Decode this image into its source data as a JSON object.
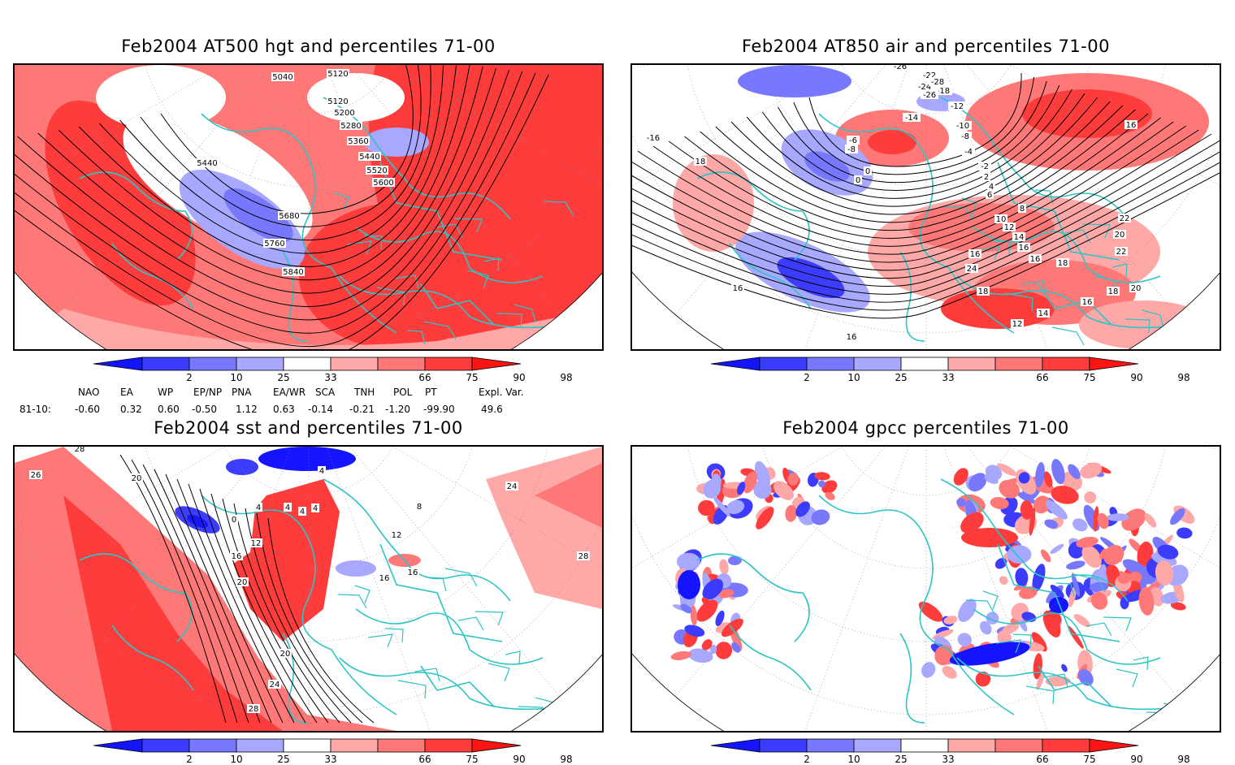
{
  "panels": [
    {
      "title": "Feb2004 AT500 hgt and percentiles 71-00",
      "contour_labels": [
        "5040",
        "5120",
        "5120",
        "5200",
        "5280",
        "5360",
        "5440",
        "5440",
        "5520",
        "5600",
        "5680",
        "5760",
        "5840"
      ]
    },
    {
      "title": "Feb2004 AT850 air and percentiles 71-00",
      "contour_labels": [
        "-26",
        "-22",
        "-24",
        "-28",
        "-18",
        "-26",
        "-12",
        "-14",
        "-10",
        "-8",
        "-6",
        "-8",
        "-4",
        "-2",
        "0",
        "2",
        "0",
        "4",
        "6",
        "8",
        "10",
        "12",
        "14",
        "16",
        "16",
        "18",
        "20",
        "22",
        "24",
        "22",
        "20",
        "18",
        "16",
        "14",
        "12",
        "16",
        "18",
        "16",
        "16",
        "-16",
        "16",
        "18"
      ]
    },
    {
      "title": "Feb2004 sst and percentiles 71-00",
      "contour_labels": [
        "28",
        "26",
        "20",
        "0",
        "4",
        "4",
        "4",
        "4",
        "20",
        "12",
        "16",
        "20",
        "24",
        "28",
        "24",
        "28",
        "16",
        "16",
        "12",
        "8",
        "4"
      ]
    },
    {
      "title": "Feb2004 gpcc percentiles 71-00",
      "contour_labels": []
    }
  ],
  "colorbar": {
    "labels": [
      "2",
      "10",
      "25",
      "33",
      "66",
      "75",
      "90",
      "98"
    ],
    "colors": [
      "#1414ff",
      "#3c3cff",
      "#7878ff",
      "#a8a8ff",
      "#ffffff",
      "#ffa8a8",
      "#ff7878",
      "#ff3c3c",
      "#ff1414"
    ]
  },
  "indices": {
    "headers": [
      "NAO",
      "EA",
      "WP",
      "EP/NP",
      "PNA",
      "EA/WR",
      "SCA",
      "TNH",
      "POL",
      "PT",
      "Expl. Var."
    ],
    "row_label": "81-10:",
    "values": [
      "-0.60",
      "0.32",
      "0.60",
      "-0.50",
      "1.12",
      "0.63",
      "-0.14",
      "-0.21",
      "-1.20",
      "-99.90",
      "49.6"
    ]
  },
  "colors": {
    "land_boundary": "#2ec4c4",
    "contour": "#000000",
    "warm": "#ff3c3c",
    "cold": "#3c3cff"
  }
}
